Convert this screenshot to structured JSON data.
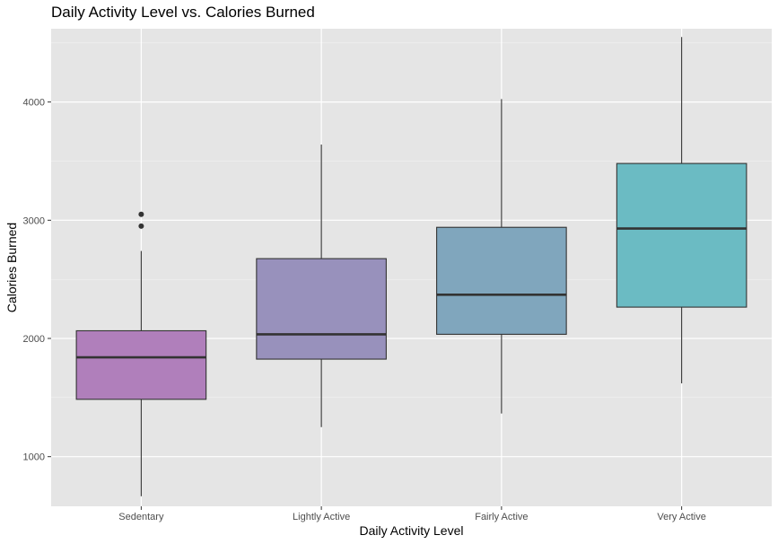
{
  "chart_data": {
    "type": "boxplot",
    "title": "Daily Activity Level vs. Calories Burned",
    "xlabel": "Daily Activity Level",
    "ylabel": "Calories Burned",
    "ylim": [
      580,
      4620
    ],
    "yticks": [
      1000,
      2000,
      3000,
      4000
    ],
    "grid": true,
    "categories": [
      "Sedentary",
      "Lightly Active",
      "Fairly Active",
      "Very Active"
    ],
    "colors": [
      "#b07fbb",
      "#9891bc",
      "#80a6bd",
      "#6bbbc3"
    ],
    "boxes": [
      {
        "category": "Sedentary",
        "whisker_low": 665,
        "q1": 1485,
        "median": 1840,
        "q3": 2065,
        "whisker_high": 2740,
        "outliers": [
          2950,
          3050
        ]
      },
      {
        "category": "Lightly Active",
        "whisker_low": 1250,
        "q1": 1825,
        "median": 2035,
        "q3": 2675,
        "whisker_high": 3640,
        "outliers": []
      },
      {
        "category": "Fairly Active",
        "whisker_low": 1365,
        "q1": 2035,
        "median": 2370,
        "q3": 2940,
        "whisker_high": 4025,
        "outliers": []
      },
      {
        "category": "Very Active",
        "whisker_low": 1620,
        "q1": 2265,
        "median": 2930,
        "q3": 3480,
        "whisker_high": 4550,
        "outliers": []
      }
    ]
  }
}
